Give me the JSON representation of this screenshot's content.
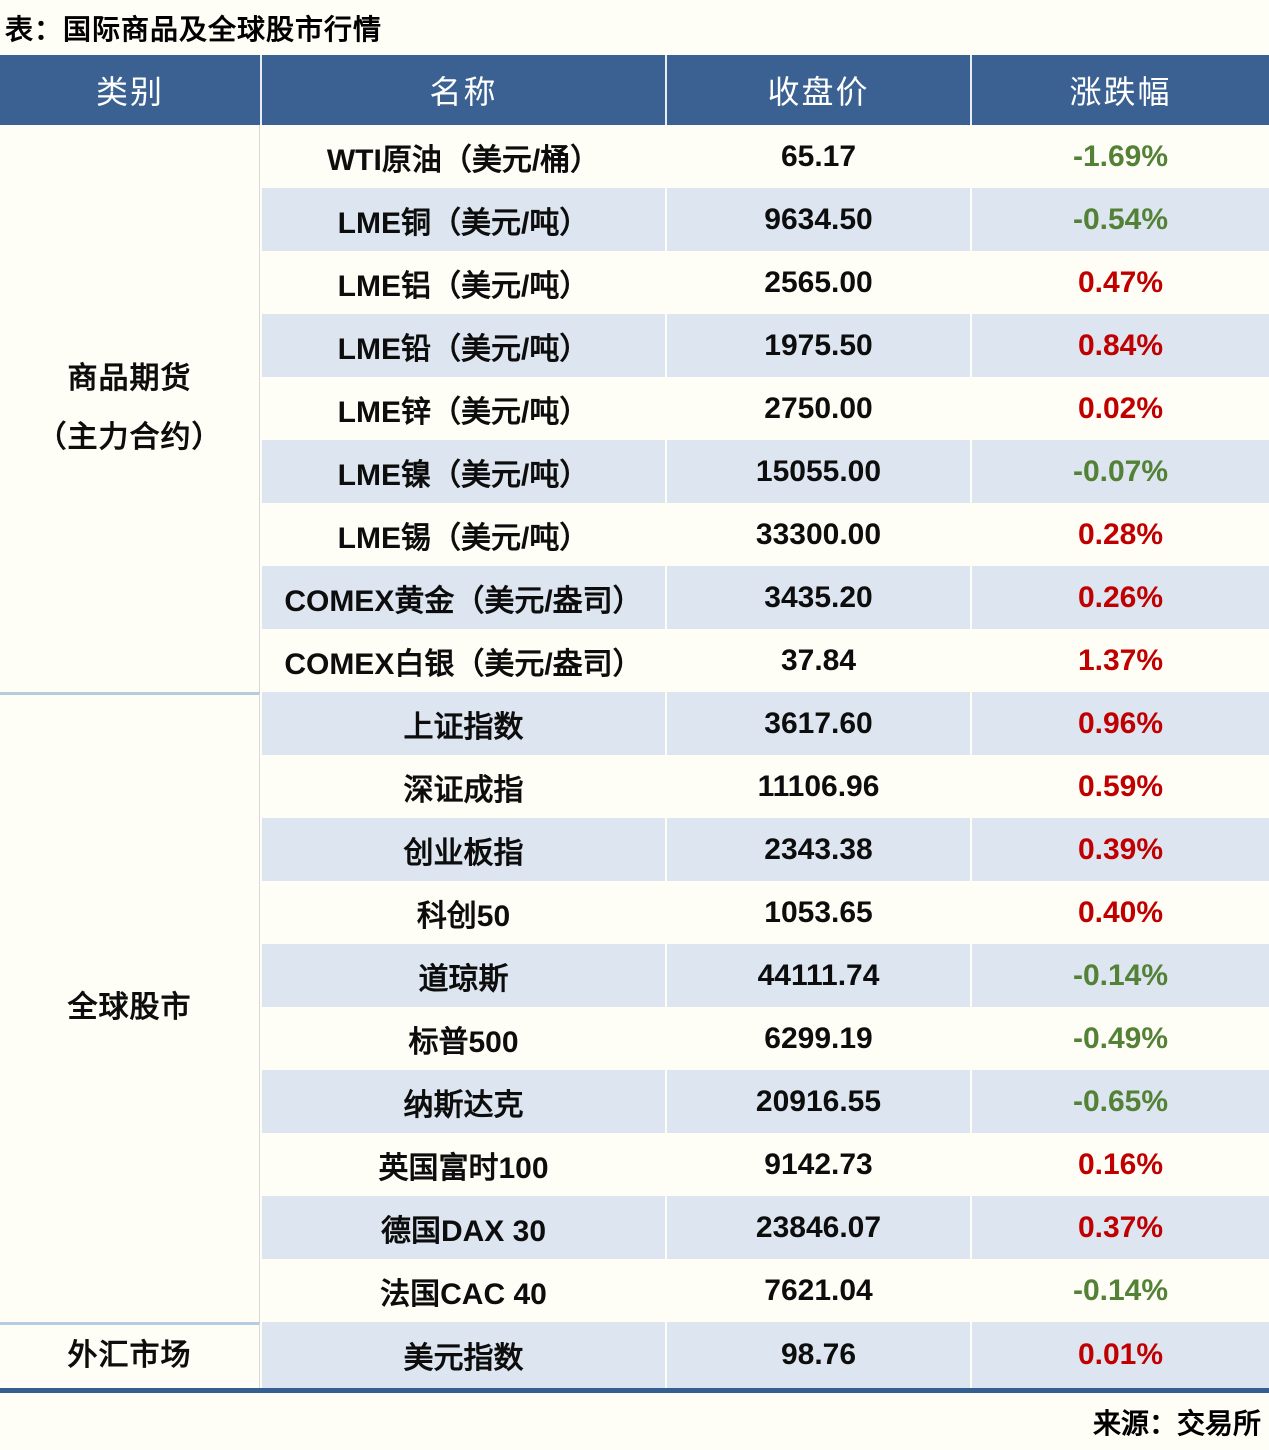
{
  "chart_data": {
    "type": "table",
    "title": "表：国际商品及全球股市行情",
    "columns": [
      "类别",
      "名称",
      "收盘价",
      "涨跌幅"
    ],
    "groups": [
      {
        "category": "商品期货\n（主力合约）",
        "rows": [
          {
            "name": "WTI原油（美元/桶）",
            "close": "65.17",
            "change": "-1.69%"
          },
          {
            "name": "LME铜（美元/吨）",
            "close": "9634.50",
            "change": "-0.54%"
          },
          {
            "name": "LME铝（美元/吨）",
            "close": "2565.00",
            "change": "0.47%"
          },
          {
            "name": "LME铅（美元/吨）",
            "close": "1975.50",
            "change": "0.84%"
          },
          {
            "name": "LME锌（美元/吨）",
            "close": "2750.00",
            "change": "0.02%"
          },
          {
            "name": "LME镍（美元/吨）",
            "close": "15055.00",
            "change": "-0.07%"
          },
          {
            "name": "LME锡（美元/吨）",
            "close": "33300.00",
            "change": "0.28%"
          },
          {
            "name": "COMEX黄金（美元/盎司）",
            "close": "3435.20",
            "change": "0.26%"
          },
          {
            "name": "COMEX白银（美元/盎司）",
            "close": "37.84",
            "change": "1.37%"
          }
        ]
      },
      {
        "category": "全球股市",
        "rows": [
          {
            "name": "上证指数",
            "close": "3617.60",
            "change": "0.96%"
          },
          {
            "name": "深证成指",
            "close": "11106.96",
            "change": "0.59%"
          },
          {
            "name": "创业板指",
            "close": "2343.38",
            "change": "0.39%"
          },
          {
            "name": "科创50",
            "close": "1053.65",
            "change": "0.40%"
          },
          {
            "name": "道琼斯",
            "close": "44111.74",
            "change": "-0.14%"
          },
          {
            "name": "标普500",
            "close": "6299.19",
            "change": "-0.49%"
          },
          {
            "name": "纳斯达克",
            "close": "20916.55",
            "change": "-0.65%"
          },
          {
            "name": "英国富时100",
            "close": "9142.73",
            "change": "0.16%"
          },
          {
            "name": "德国DAX 30",
            "close": "23846.07",
            "change": "0.37%"
          },
          {
            "name": "法国CAC 40",
            "close": "7621.04",
            "change": "-0.14%"
          }
        ]
      },
      {
        "category": "外汇市场",
        "rows": [
          {
            "name": "美元指数",
            "close": "98.76",
            "change": "0.01%"
          }
        ]
      }
    ],
    "colors": {
      "up": "#c00000",
      "down": "#538135",
      "header_bg": "#3a6191",
      "stripe_bg": "#dde5f0",
      "bottom_border": "#365f91"
    },
    "source": "来源：交易所",
    "layout": {
      "legend": "none",
      "grid": "banded-rows"
    }
  }
}
